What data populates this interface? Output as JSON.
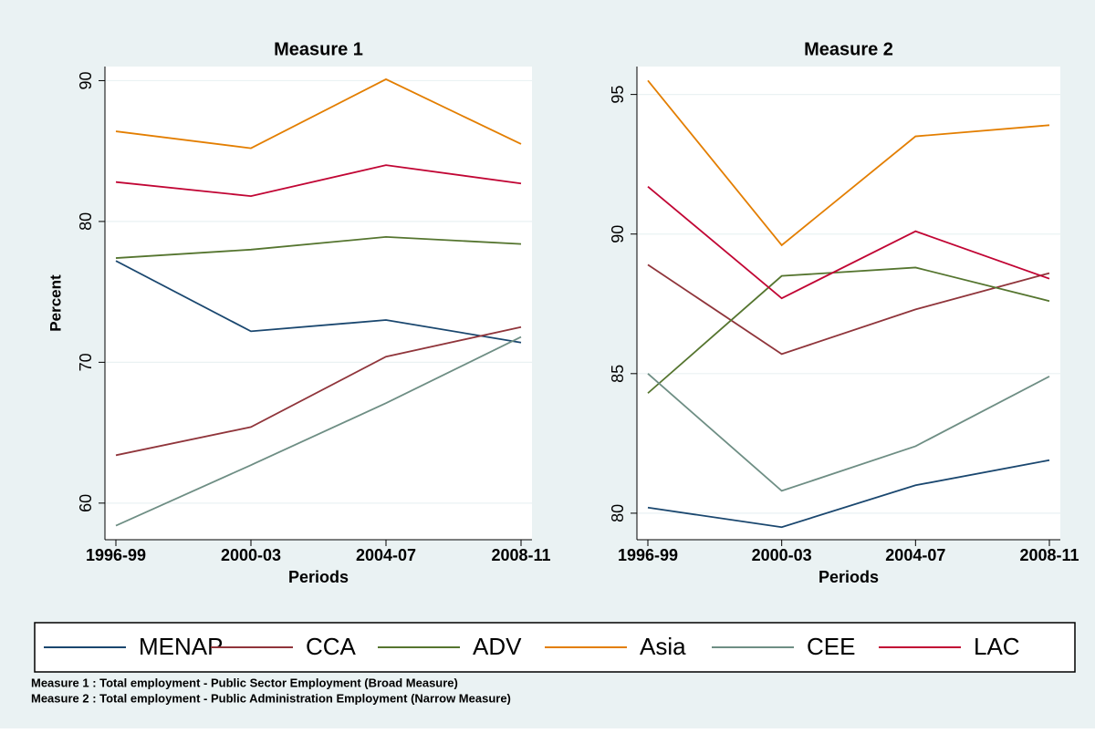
{
  "chart_data": [
    {
      "type": "line",
      "title": "Measure 1",
      "x_label": "Periods",
      "y_label": "Percent",
      "categories": [
        "1996-99",
        "2000-03",
        "2004-07",
        "2008-11"
      ],
      "ylim": [
        57.4,
        91
      ],
      "yticks": [
        60,
        70,
        80,
        90
      ],
      "grid": true,
      "series": [
        {
          "name": "MENAP",
          "color": "#1a476f",
          "values": [
            77.2,
            72.2,
            73.0,
            71.4
          ]
        },
        {
          "name": "CCA",
          "color": "#90353b",
          "values": [
            63.4,
            65.4,
            70.4,
            72.5
          ]
        },
        {
          "name": "ADV",
          "color": "#55752f",
          "values": [
            77.4,
            78.0,
            78.9,
            78.4
          ]
        },
        {
          "name": "Asia",
          "color": "#e37e00",
          "values": [
            86.4,
            85.2,
            90.1,
            85.5
          ]
        },
        {
          "name": "CEE",
          "color": "#6e8e84",
          "values": [
            58.4,
            62.7,
            67.1,
            71.8
          ]
        },
        {
          "name": "LAC",
          "color": "#c10534",
          "values": [
            82.8,
            81.8,
            84.0,
            82.7
          ]
        }
      ]
    },
    {
      "type": "line",
      "title": "Measure 2",
      "x_label": "Periods",
      "categories": [
        "1996-99",
        "2000-03",
        "2004-07",
        "2008-11"
      ],
      "ylim": [
        79.05,
        96
      ],
      "yticks": [
        80,
        85,
        90,
        95
      ],
      "grid": true,
      "series": [
        {
          "name": "MENAP",
          "color": "#1a476f",
          "values": [
            80.2,
            79.5,
            81.0,
            81.9
          ]
        },
        {
          "name": "CCA",
          "color": "#90353b",
          "values": [
            88.9,
            85.7,
            87.3,
            88.6
          ]
        },
        {
          "name": "ADV",
          "color": "#55752f",
          "values": [
            84.3,
            88.5,
            88.8,
            87.6
          ]
        },
        {
          "name": "Asia",
          "color": "#e37e00",
          "values": [
            95.5,
            89.6,
            93.5,
            93.9
          ]
        },
        {
          "name": "CEE",
          "color": "#6e8e84",
          "values": [
            85.0,
            80.8,
            82.4,
            84.9
          ]
        },
        {
          "name": "LAC",
          "color": "#c10534",
          "values": [
            91.7,
            87.7,
            90.1,
            88.4
          ]
        }
      ]
    }
  ],
  "notes": [
    "Measure 1 : Total employment - Public Sector Employment (Broad Measure)",
    "Measure 2 : Total employment - Public Administration Employment (Narrow Measure)"
  ]
}
